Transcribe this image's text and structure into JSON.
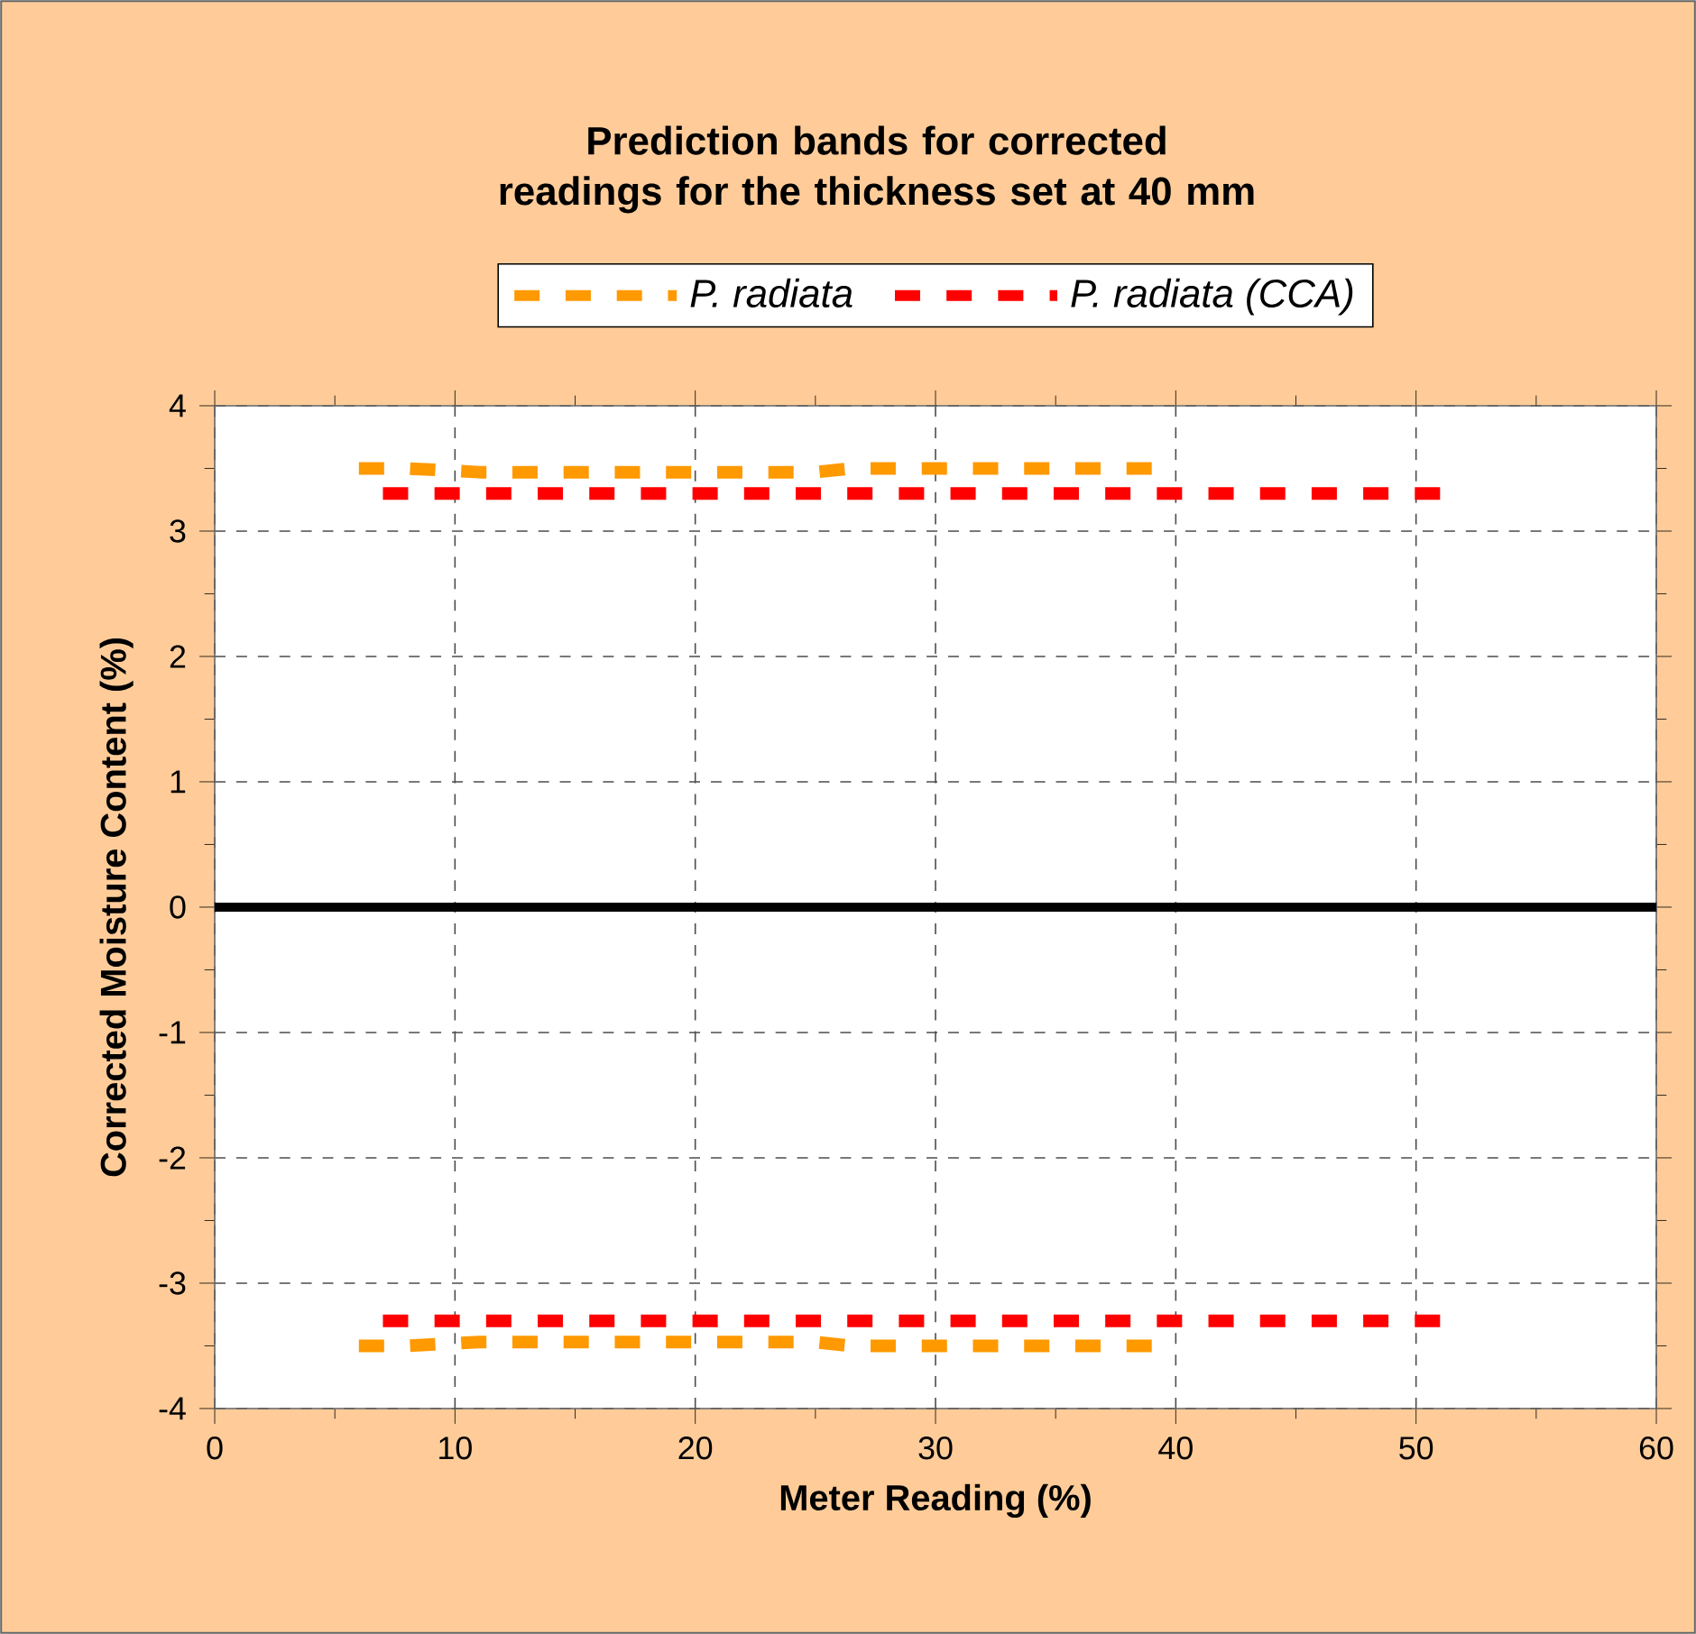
{
  "chart_data": {
    "type": "line",
    "title": "Prediction bands for corrected readings for the  thickness set at 40 mm",
    "xlabel": "Meter Reading (%)",
    "ylabel": "Corrected Moisture Content (%)",
    "xlim": [
      0,
      60
    ],
    "ylim": [
      -4,
      4
    ],
    "xticks": [
      0,
      10,
      20,
      30,
      40,
      50,
      60
    ],
    "yticks": [
      -4,
      -3,
      -2,
      -1,
      0,
      1,
      2,
      3,
      4
    ],
    "grid": true,
    "legend": "top",
    "marker": "none",
    "line_style": "dashed",
    "ref_lines": [
      {
        "axis": "y",
        "value": 0,
        "color": "#000000",
        "line_style": "solid"
      }
    ],
    "series": [
      {
        "name": "P. radiata",
        "color": "#ff9900",
        "x": [
          6,
          8,
          11,
          25,
          26.5,
          39
        ],
        "values": [
          3.5,
          3.5,
          3.47,
          3.47,
          3.5,
          3.5
        ]
      },
      {
        "color": "#ff9900",
        "x": [
          6,
          8,
          11,
          25,
          26.5,
          39
        ],
        "values": [
          -3.5,
          -3.5,
          -3.47,
          -3.47,
          -3.5,
          -3.5
        ]
      },
      {
        "name": "P. radiata (CCA)",
        "color": "#ff0000",
        "x": [
          7,
          51
        ],
        "values": [
          3.3,
          3.3
        ]
      },
      {
        "color": "#ff0000",
        "x": [
          7,
          51
        ],
        "values": [
          -3.3,
          -3.3
        ]
      }
    ]
  }
}
